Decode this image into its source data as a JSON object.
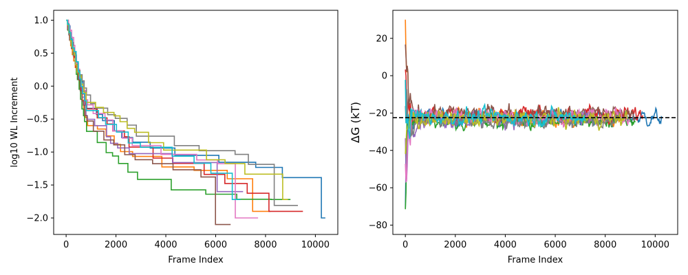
{
  "colors": [
    "#1f77b4",
    "#ff7f0e",
    "#2ca02c",
    "#d62728",
    "#9467bd",
    "#8c564b",
    "#e377c2",
    "#7f7f7f",
    "#bcbd22",
    "#17becf"
  ],
  "chart_data": [
    {
      "type": "line",
      "title": "",
      "xlabel": "Frame Index",
      "ylabel": "log10 WL Increment",
      "xlim": [
        -500,
        10900
      ],
      "ylim": [
        -2.25,
        1.15
      ],
      "xticks": [
        0,
        2000,
        4000,
        6000,
        8000,
        10000
      ],
      "yticks": [
        -2.0,
        -1.5,
        -1.0,
        -0.5,
        0.0,
        0.5,
        1.0
      ],
      "ytick_labels": [
        "−2.0",
        "−1.5",
        "−1.0",
        "−0.5",
        "0.0",
        "0.5",
        "1.0"
      ],
      "grid": false,
      "legend": "none",
      "step": true,
      "series": [
        {
          "color": "#1f77b4",
          "end_x": 10400,
          "final_y": -2.0
        },
        {
          "color": "#ff7f0e",
          "end_x": 8200,
          "final_y": -1.9
        },
        {
          "color": "#2ca02c",
          "end_x": 9000,
          "final_y": -1.72
        },
        {
          "color": "#d62728",
          "end_x": 9500,
          "final_y": -1.9
        },
        {
          "color": "#9467bd",
          "end_x": 7100,
          "final_y": -1.6
        },
        {
          "color": "#8c564b",
          "end_x": 6600,
          "final_y": -2.1
        },
        {
          "color": "#e377c2",
          "end_x": 7700,
          "final_y": -2.0
        },
        {
          "color": "#7f7f7f",
          "end_x": 9300,
          "final_y": -1.81
        },
        {
          "color": "#bcbd22",
          "end_x": 8900,
          "final_y": -1.72
        },
        {
          "color": "#17becf",
          "end_x": 7000,
          "final_y": -1.72
        }
      ]
    },
    {
      "type": "line",
      "title": "",
      "xlabel": "Frame Index",
      "ylabel": "ΔG (kT)",
      "xlim": [
        -500,
        10900
      ],
      "ylim": [
        -85,
        35
      ],
      "xticks": [
        0,
        2000,
        4000,
        6000,
        8000,
        10000
      ],
      "yticks": [
        -80,
        -60,
        -40,
        -20,
        0,
        20
      ],
      "ytick_labels": [
        "−80",
        "−60",
        "−40",
        "−20",
        "0",
        "20"
      ],
      "grid": false,
      "legend": "none",
      "reference_line": {
        "y": -22.5,
        "style": "dashed",
        "color": "#000000"
      },
      "series": [
        {
          "color": "#1f77b4",
          "end_x": 10300,
          "mean_y": -22.5
        },
        {
          "color": "#ff7f0e",
          "end_x": 8700,
          "mean_y": -23
        },
        {
          "color": "#2ca02c",
          "end_x": 9200,
          "mean_y": -24
        },
        {
          "color": "#d62728",
          "end_x": 9500,
          "mean_y": -21
        },
        {
          "color": "#9467bd",
          "end_x": 7500,
          "mean_y": -23
        },
        {
          "color": "#8c564b",
          "end_x": 9200,
          "mean_y": -20
        },
        {
          "color": "#e377c2",
          "end_x": 9000,
          "mean_y": -22
        },
        {
          "color": "#7f7f7f",
          "end_x": 8600,
          "mean_y": -24
        },
        {
          "color": "#bcbd22",
          "end_x": 8900,
          "mean_y": -23
        },
        {
          "color": "#17becf",
          "end_x": 7200,
          "mean_y": -22
        }
      ]
    }
  ]
}
